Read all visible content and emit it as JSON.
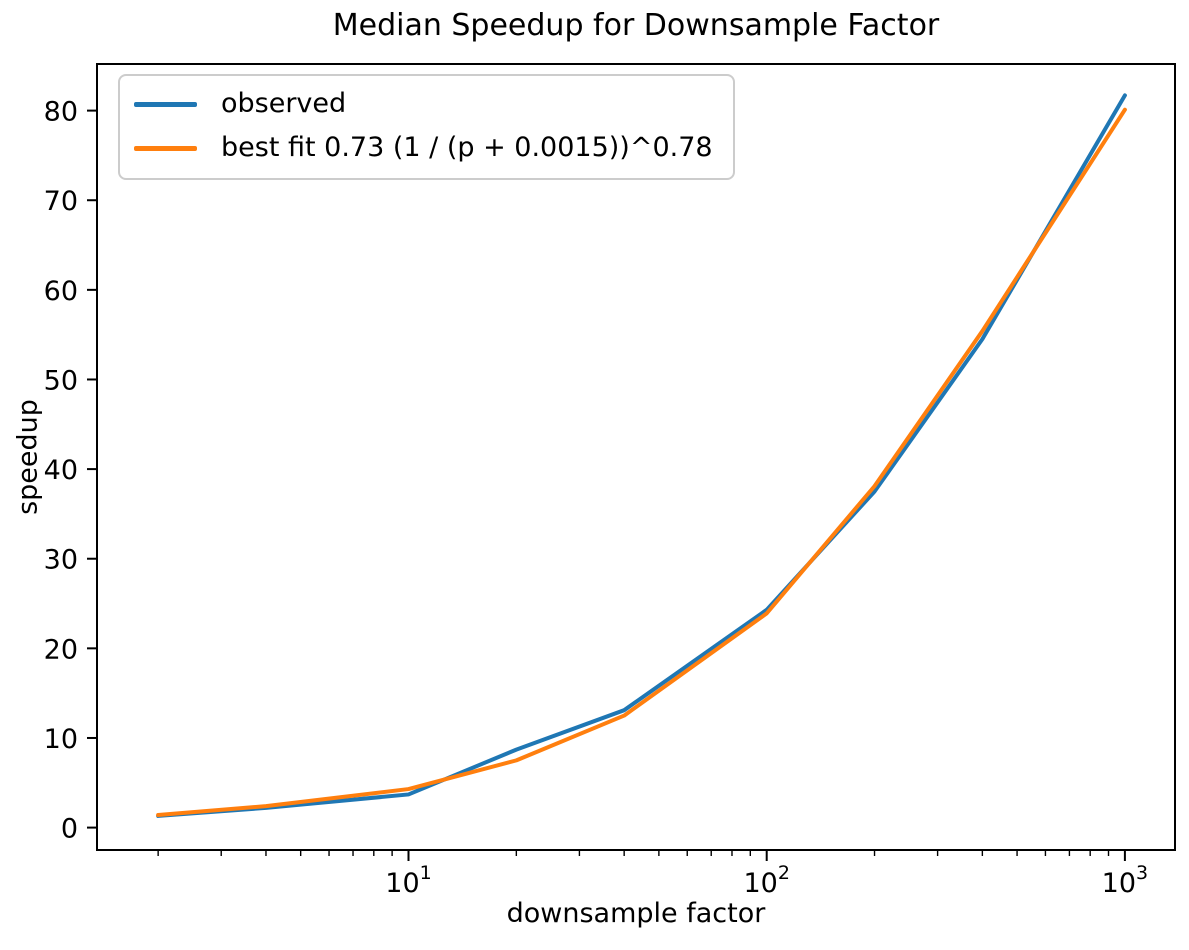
{
  "chart_data": {
    "type": "line",
    "title": "Median Speedup for Downsample Factor",
    "xlabel": "downsample factor",
    "ylabel": "speedup",
    "x_scale": "log",
    "grid": false,
    "legend_position": "upper left",
    "x": [
      2,
      4,
      10,
      20,
      40,
      100,
      200,
      400,
      1000
    ],
    "series": [
      {
        "name": "observed",
        "color": "#1f77b4",
        "values": [
          1.3,
          2.2,
          3.7,
          8.7,
          13.1,
          24.3,
          37.5,
          54.5,
          81.7
        ]
      },
      {
        "name": "best fit 0.73 (1 / (p + 0.0015))^0.78",
        "color": "#ff7f0e",
        "values": [
          1.4,
          2.4,
          4.3,
          7.5,
          12.5,
          23.9,
          38.1,
          55.4,
          80.1
        ]
      }
    ],
    "xlim": [
      1.35,
      1380
    ],
    "ylim": [
      -2.5,
      85.2
    ],
    "yticks": [
      0,
      10,
      20,
      30,
      40,
      50,
      60,
      70,
      80
    ],
    "xticks": [
      {
        "value": 10,
        "base": "10",
        "exp": "1"
      },
      {
        "value": 100,
        "base": "10",
        "exp": "2"
      },
      {
        "value": 1000,
        "base": "10",
        "exp": "3"
      }
    ],
    "x_minor_ticks": [
      2,
      3,
      4,
      5,
      6,
      7,
      8,
      9,
      20,
      30,
      40,
      50,
      60,
      70,
      80,
      90,
      200,
      300,
      400,
      500,
      600,
      700,
      800,
      900
    ],
    "axis_color": "#000000",
    "background_color": "#ffffff"
  }
}
